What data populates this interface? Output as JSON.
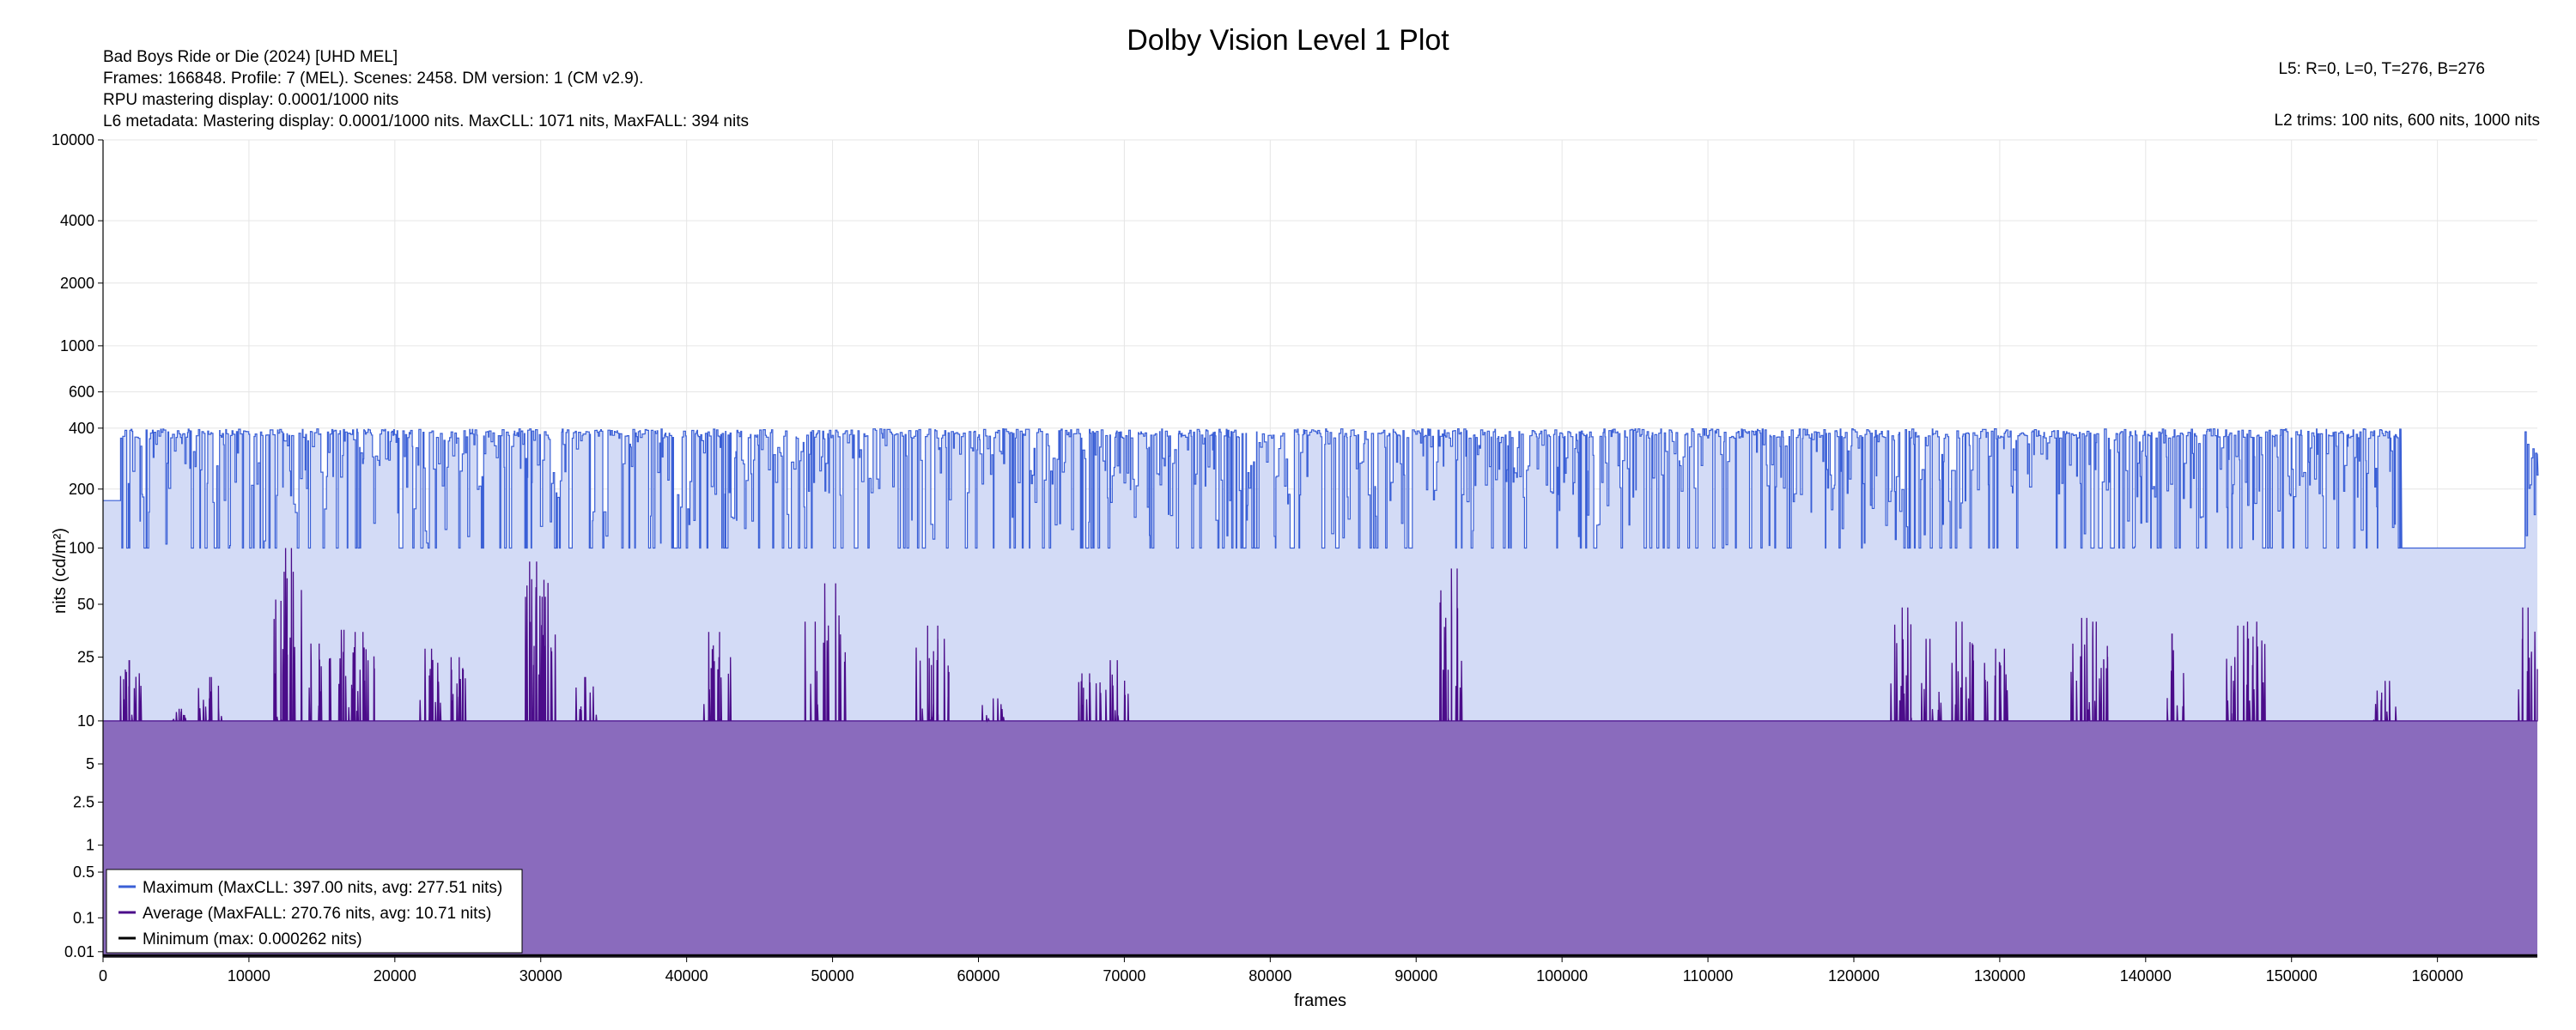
{
  "title": "Dolby Vision Level 1 Plot",
  "info": {
    "line1": "Bad Boys Ride or Die (2024) [UHD MEL]",
    "line2": "Frames: 166848. Profile: 7 (MEL). Scenes: 2458. DM version: 1 (CM v2.9).",
    "line3": "RPU mastering display: 0.0001/1000 nits",
    "line4": "L6 metadata: Mastering display: 0.0001/1000 nits. MaxCLL: 1071 nits, MaxFALL: 394 nits",
    "l5": "L5: R=0, L=0, T=276, B=276",
    "l2": "L2 trims: 100 nits, 600 nits, 1000 nits"
  },
  "colors": {
    "max_line": "#3a5fd6",
    "max_fill": "#d3dbf6",
    "avg_line": "#4b0c8a",
    "avg_fill": "#8a6bbd",
    "min_line": "#000000",
    "grid": "#e6e6e6"
  },
  "chart_data": {
    "type": "area",
    "title": "Dolby Vision Level 1 Plot",
    "xlabel": "frames",
    "ylabel": "nits (cd/m²)",
    "xlim": [
      0,
      166848
    ],
    "ylim": [
      0.005,
      10000
    ],
    "yscale": "pq",
    "grid": true,
    "legend_placement": "bottom-left",
    "x_ticks": [
      0,
      10000,
      20000,
      30000,
      40000,
      50000,
      60000,
      70000,
      80000,
      90000,
      100000,
      110000,
      120000,
      130000,
      140000,
      150000,
      160000
    ],
    "y_ticks": [
      10000,
      4000,
      2000,
      1000,
      600,
      400,
      200,
      100,
      50,
      25,
      10,
      5,
      2.5,
      1,
      0.5,
      0.1,
      0.01
    ],
    "y_tick_labels": [
      "10000",
      "4000",
      "2000",
      "1000",
      "600",
      "400",
      "200",
      "100",
      "50",
      "25",
      "10",
      "5",
      "2.5",
      "1",
      "0.5",
      "0.1",
      "0.01"
    ],
    "series": [
      {
        "name": "Maximum (MaxCLL: 397.00 nits, avg: 277.51 nits)",
        "typical_range": [
          100,
          397
        ],
        "peak": 397,
        "average": 277.51,
        "segments": [
          {
            "x": [
              0,
              1200
            ],
            "value": 175
          },
          {
            "x": [
              157500,
              166000
            ],
            "value": 100
          }
        ]
      },
      {
        "name": "Average (MaxFALL: 270.76 nits, avg: 10.71 nits)",
        "baseline": 10,
        "peak": 270.76,
        "average": 10.71,
        "spikes": [
          {
            "x": 1800,
            "value": 24
          },
          {
            "x": 5200,
            "value": 12
          },
          {
            "x": 7300,
            "value": 19
          },
          {
            "x": 12400,
            "value": 75
          },
          {
            "x": 12900,
            "value": 100
          },
          {
            "x": 14800,
            "value": 30
          },
          {
            "x": 16500,
            "value": 36
          },
          {
            "x": 17800,
            "value": 35
          },
          {
            "x": 22500,
            "value": 28
          },
          {
            "x": 24400,
            "value": 25
          },
          {
            "x": 29700,
            "value": 85
          },
          {
            "x": 30300,
            "value": 55
          },
          {
            "x": 33000,
            "value": 19
          },
          {
            "x": 41500,
            "value": 35
          },
          {
            "x": 42200,
            "value": 25
          },
          {
            "x": 48800,
            "value": 40
          },
          {
            "x": 50200,
            "value": 65
          },
          {
            "x": 56500,
            "value": 38
          },
          {
            "x": 57200,
            "value": 32
          },
          {
            "x": 61000,
            "value": 14
          },
          {
            "x": 67600,
            "value": 20
          },
          {
            "x": 69500,
            "value": 24
          },
          {
            "x": 92400,
            "value": 78
          },
          {
            "x": 123300,
            "value": 48
          },
          {
            "x": 125200,
            "value": 32
          },
          {
            "x": 127400,
            "value": 40
          },
          {
            "x": 129700,
            "value": 28
          },
          {
            "x": 135600,
            "value": 42
          },
          {
            "x": 136600,
            "value": 40
          },
          {
            "x": 141800,
            "value": 34
          },
          {
            "x": 146300,
            "value": 38
          },
          {
            "x": 147600,
            "value": 40
          },
          {
            "x": 156400,
            "value": 18
          },
          {
            "x": 166200,
            "value": 48
          }
        ]
      },
      {
        "name": "Minimum (max: 0.000262 nits)",
        "peak": 0.000262,
        "value": 0.0001
      }
    ]
  }
}
